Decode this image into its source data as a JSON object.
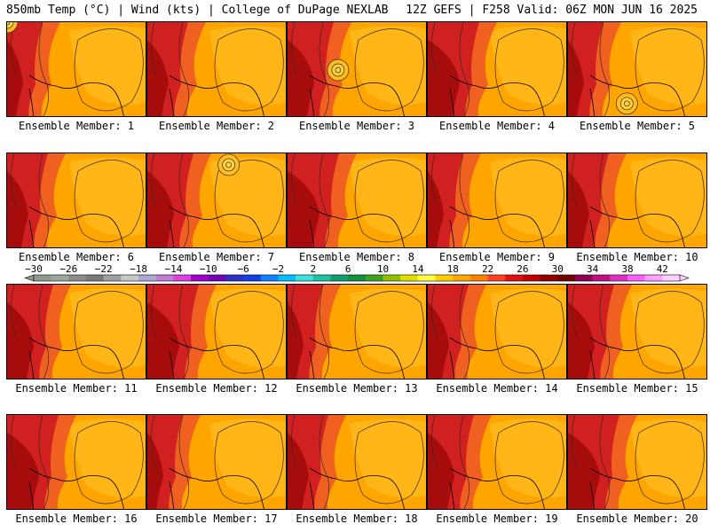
{
  "header": {
    "left": "850mb Temp (°C) | Wind (kts) | College of DuPage NEXLAB",
    "right": "12Z GEFS | F258 Valid: 06Z MON JUN 16 2025"
  },
  "members": [
    {
      "label": "Ensemble Member: 1",
      "highs": [
        [
          0,
          0
        ]
      ]
    },
    {
      "label": "Ensemble Member: 2",
      "highs": []
    },
    {
      "label": "Ensemble Member: 3",
      "highs": [
        [
          0.36,
          0.5
        ]
      ]
    },
    {
      "label": "Ensemble Member: 4",
      "highs": []
    },
    {
      "label": "Ensemble Member: 5",
      "highs": [
        [
          0.42,
          0.85
        ]
      ]
    },
    {
      "label": "Ensemble Member: 6",
      "highs": []
    },
    {
      "label": "Ensemble Member: 7",
      "highs": [
        [
          0.58,
          0.12
        ]
      ]
    },
    {
      "label": "Ensemble Member: 8",
      "highs": []
    },
    {
      "label": "Ensemble Member: 9",
      "highs": []
    },
    {
      "label": "Ensemble Member: 10",
      "highs": []
    },
    {
      "label": "Ensemble Member: 11",
      "highs": []
    },
    {
      "label": "Ensemble Member: 12",
      "highs": []
    },
    {
      "label": "Ensemble Member: 13",
      "highs": []
    },
    {
      "label": "Ensemble Member: 14",
      "highs": []
    },
    {
      "label": "Ensemble Member: 15",
      "highs": []
    },
    {
      "label": "Ensemble Member: 16",
      "highs": []
    },
    {
      "label": "Ensemble Member: 17",
      "highs": []
    },
    {
      "label": "Ensemble Member: 18",
      "highs": []
    },
    {
      "label": "Ensemble Member: 19",
      "highs": []
    },
    {
      "label": "Ensemble Member: 20",
      "highs": []
    }
  ],
  "color_scale": {
    "ticks": [
      "-30",
      "-26",
      "-22",
      "-18",
      "-14",
      "-10",
      "-6",
      "-2",
      "2",
      "6",
      "10",
      "14",
      "18",
      "22",
      "26",
      "30",
      "34",
      "38",
      "42"
    ],
    "colors": [
      "#8c9c8c",
      "#9aa79a",
      "#8c8c8c",
      "#7a7a7a",
      "#a0a0a0",
      "#c8c8c8",
      "#a9a9d6",
      "#c07ad8",
      "#e040e0",
      "#a000c8",
      "#7000b0",
      "#3030c0",
      "#1040e0",
      "#1080ff",
      "#00c0ff",
      "#40e0e0",
      "#20c0a0",
      "#10a070",
      "#109040",
      "#40a020",
      "#90c000",
      "#e0e000",
      "#ffff40",
      "#ffd000",
      "#ffa500",
      "#ff8000",
      "#ff4020",
      "#e01010",
      "#c00000",
      "#900000",
      "#700000",
      "#8b0050",
      "#c01080",
      "#e030c0",
      "#ff60ff",
      "#ffa0ff",
      "#ffd0ff"
    ]
  },
  "map_colors": {
    "hot": "#8b0000",
    "warm": "#d02020",
    "mild": "#f06020",
    "base": "#ffa500",
    "light": "#ffbe20",
    "contour": "#3a2a1a"
  }
}
